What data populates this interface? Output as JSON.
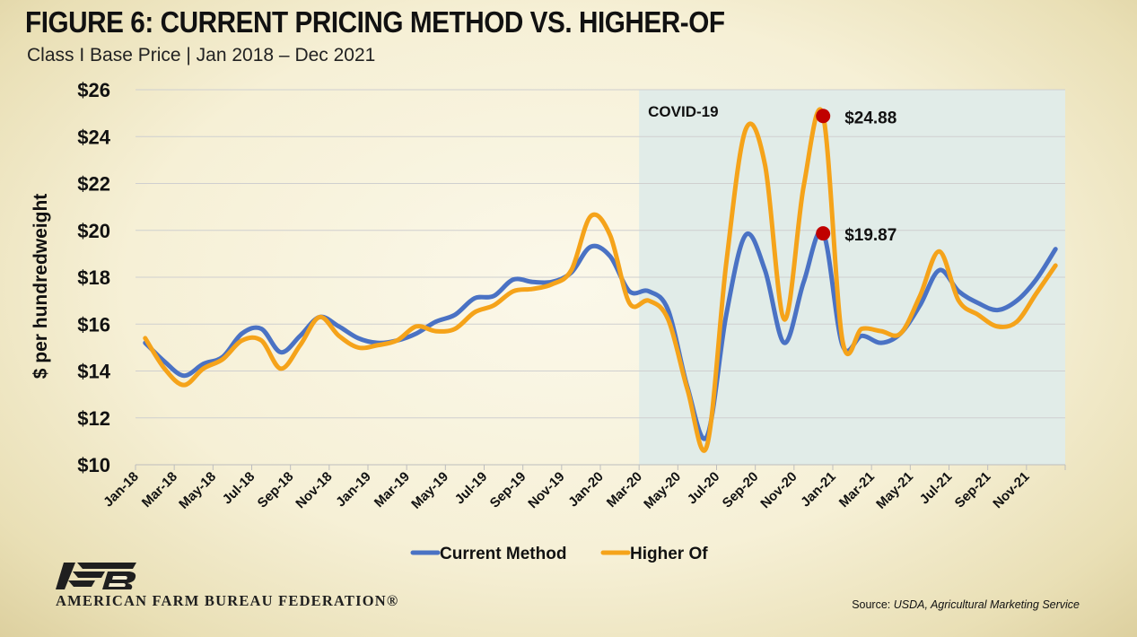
{
  "header": {
    "title": "FIGURE 6: CURRENT PRICING METHOD VS. HIGHER-OF",
    "subtitle": "Class I Base Price | Jan 2018 – Dec 2021"
  },
  "footer": {
    "org_name": "AMERICAN FARM BUREAU FEDERATION®",
    "source_prefix": "Source: ",
    "source_text": "USDA, Agricultural Marketing Service"
  },
  "colors": {
    "current_method": "#4a72c4",
    "higher_of": "#f5a31a",
    "covid_band": "#e1ece8",
    "marker": "#c00000",
    "logo": "#1f1f1f"
  },
  "chart_data": {
    "type": "line",
    "ylabel": "$ per hundredweight",
    "xlabel": "",
    "ylim": [
      10,
      26
    ],
    "y_ticks": [
      "$10",
      "$12",
      "$14",
      "$16",
      "$18",
      "$20",
      "$22",
      "$24",
      "$26"
    ],
    "grid": true,
    "legend_position": "bottom-center",
    "x_labels": [
      "Jan-18",
      "Mar-18",
      "May-18",
      "Jul-18",
      "Sep-18",
      "Nov-18",
      "Jan-19",
      "Mar-19",
      "May-19",
      "Jul-19",
      "Sep-19",
      "Nov-19",
      "Jan-20",
      "Mar-20",
      "May-20",
      "Jul-20",
      "Sep-20",
      "Nov-20",
      "Jan-21",
      "Mar-21",
      "May-21",
      "Jul-21",
      "Sep-21",
      "Nov-21"
    ],
    "months": [
      "Jan-18",
      "Feb-18",
      "Mar-18",
      "Apr-18",
      "May-18",
      "Jun-18",
      "Jul-18",
      "Aug-18",
      "Sep-18",
      "Oct-18",
      "Nov-18",
      "Dec-18",
      "Jan-19",
      "Feb-19",
      "Mar-19",
      "Apr-19",
      "May-19",
      "Jun-19",
      "Jul-19",
      "Aug-19",
      "Sep-19",
      "Oct-19",
      "Nov-19",
      "Dec-19",
      "Jan-20",
      "Feb-20",
      "Mar-20",
      "Apr-20",
      "May-20",
      "Jun-20",
      "Jul-20",
      "Aug-20",
      "Sep-20",
      "Oct-20",
      "Nov-20",
      "Dec-20",
      "Jan-21",
      "Feb-21",
      "Mar-21",
      "Apr-21",
      "May-21",
      "Jun-21",
      "Jul-21",
      "Aug-21",
      "Sep-21",
      "Oct-21",
      "Nov-21",
      "Dec-21"
    ],
    "series": [
      {
        "name": "Current Method",
        "values": [
          15.2,
          14.4,
          13.8,
          14.3,
          14.6,
          15.6,
          15.8,
          14.8,
          15.5,
          16.3,
          15.9,
          15.4,
          15.2,
          15.3,
          15.6,
          16.1,
          16.4,
          17.1,
          17.2,
          17.9,
          17.8,
          17.8,
          18.2,
          19.3,
          18.9,
          17.4,
          17.4,
          16.6,
          13.3,
          11.2,
          16.4,
          19.8,
          18.3,
          15.2,
          17.8,
          19.9,
          15.1,
          15.5,
          15.2,
          15.6,
          16.8,
          18.3,
          17.4,
          16.9,
          16.6,
          17.0,
          17.9,
          19.2
        ]
      },
      {
        "name": "Higher Of",
        "values": [
          15.4,
          14.1,
          13.4,
          14.1,
          14.5,
          15.3,
          15.3,
          14.1,
          15.1,
          16.3,
          15.5,
          15.0,
          15.1,
          15.3,
          15.9,
          15.7,
          15.8,
          16.5,
          16.8,
          17.4,
          17.5,
          17.7,
          18.3,
          20.6,
          19.8,
          16.9,
          17.0,
          16.2,
          13.2,
          10.8,
          18.6,
          24.3,
          22.8,
          16.2,
          21.9,
          24.9,
          15.3,
          15.8,
          15.7,
          15.6,
          17.2,
          19.1,
          17.0,
          16.4,
          15.9,
          16.1,
          17.3,
          18.5
        ]
      }
    ],
    "shaded_region": {
      "label": "COVID-19",
      "start": "Mar-20",
      "end": "Dec-21"
    },
    "annotations": [
      {
        "month": "Dec-20",
        "value": 24.88,
        "label": "$24.88"
      },
      {
        "month": "Dec-20",
        "value": 19.87,
        "label": "$19.87"
      }
    ]
  }
}
